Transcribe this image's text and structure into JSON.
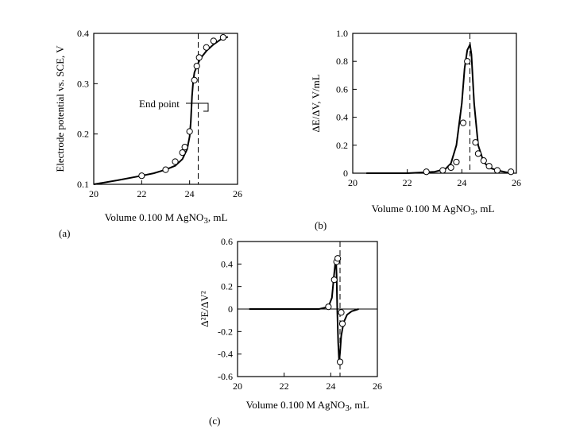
{
  "chart_data": [
    {
      "type": "line",
      "panel_label": "(a)",
      "xlabel_parts": [
        "Volume 0.100 M AgNO",
        "3",
        ", mL"
      ],
      "ylabel": "Electrode potential vs. SCE, V",
      "xlim": [
        20,
        26
      ],
      "ylim": [
        0.1,
        0.4
      ],
      "xticks": [
        "20",
        "22",
        "24",
        "26"
      ],
      "yticks": [
        "0.1",
        "0.2",
        "0.3",
        "0.4"
      ],
      "endpoint_x": 24.15,
      "annotation": "End point",
      "curve": {
        "x": [
          20,
          21,
          22,
          22.5,
          23,
          23.4,
          23.7,
          23.9,
          24.0,
          24.05,
          24.1,
          24.15,
          24.2,
          24.3,
          24.45,
          24.7,
          25.0,
          25.3,
          25.6
        ],
        "y": [
          0.1,
          0.108,
          0.117,
          0.122,
          0.129,
          0.137,
          0.15,
          0.17,
          0.195,
          0.225,
          0.275,
          0.305,
          0.322,
          0.335,
          0.35,
          0.365,
          0.378,
          0.388,
          0.393
        ]
      },
      "points": {
        "x": [
          22.0,
          23.0,
          23.4,
          23.7,
          23.8,
          24.0,
          24.2,
          24.3,
          24.4,
          24.7,
          25.0,
          25.4
        ],
        "y": [
          0.117,
          0.129,
          0.145,
          0.163,
          0.174,
          0.205,
          0.307,
          0.335,
          0.352,
          0.372,
          0.385,
          0.392
        ]
      }
    },
    {
      "type": "line",
      "panel_label": "(b)",
      "xlabel_parts": [
        "Volume 0.100 M AgNO",
        "3",
        ", mL"
      ],
      "ylabel": "ΔE/ΔV, V/mL",
      "xlim": [
        20,
        26
      ],
      "ylim": [
        0,
        1.0
      ],
      "xticks": [
        "20",
        "22",
        "24",
        "26"
      ],
      "yticks": [
        "0",
        "0.2",
        "0.4",
        "0.6",
        "0.8",
        "1.0"
      ],
      "endpoint_x": 24.3,
      "curve": {
        "x": [
          20.5,
          22,
          23,
          23.4,
          23.6,
          23.8,
          24.0,
          24.1,
          24.2,
          24.3,
          24.35,
          24.45,
          24.6,
          24.8,
          25.0,
          25.3,
          25.8
        ],
        "y": [
          0.0,
          0.0,
          0.01,
          0.03,
          0.07,
          0.2,
          0.5,
          0.75,
          0.88,
          0.92,
          0.85,
          0.5,
          0.2,
          0.08,
          0.04,
          0.02,
          0.0
        ]
      },
      "points": {
        "x": [
          22.7,
          23.3,
          23.6,
          23.8,
          24.05,
          24.2,
          24.5,
          24.6,
          24.8,
          25.0,
          25.3,
          25.8
        ],
        "y": [
          0.01,
          0.02,
          0.04,
          0.08,
          0.36,
          0.8,
          0.22,
          0.14,
          0.09,
          0.05,
          0.02,
          0.01
        ]
      }
    },
    {
      "type": "line",
      "panel_label": "(c)",
      "xlabel_parts": [
        "Volume 0.100 M AgNO",
        "3",
        ", mL"
      ],
      "ylabel": "Δ²E/ΔV²",
      "xlim": [
        20,
        26
      ],
      "ylim": [
        -0.6,
        0.6
      ],
      "xticks": [
        "20",
        "22",
        "24",
        "26"
      ],
      "yticks": [
        "0.6",
        "0.4",
        "0.2",
        "0",
        "-0.2",
        "-0.4",
        "-0.6"
      ],
      "endpoint_x": 24.3,
      "curve": {
        "x": [
          20.5,
          23.5,
          23.9,
          24.05,
          24.12,
          24.18,
          24.22,
          24.25,
          24.28,
          24.32,
          24.36,
          24.4,
          24.45,
          24.55,
          24.7,
          24.9,
          25.2
        ],
        "y": [
          0.0,
          0.0,
          0.02,
          0.1,
          0.26,
          0.38,
          0.47,
          0.3,
          0.0,
          -0.3,
          -0.47,
          -0.38,
          -0.24,
          -0.12,
          -0.05,
          -0.02,
          0.0
        ]
      },
      "points": {
        "x": [
          23.9,
          24.15,
          24.25,
          24.3,
          24.45,
          24.5,
          24.4
        ],
        "y": [
          0.02,
          0.26,
          0.42,
          0.45,
          -0.03,
          -0.13,
          -0.47
        ]
      }
    }
  ]
}
